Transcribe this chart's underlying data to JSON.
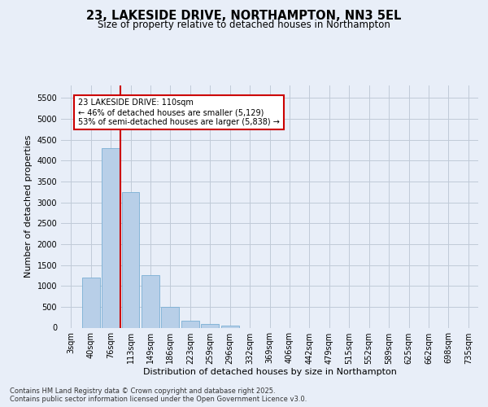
{
  "title_line1": "23, LAKESIDE DRIVE, NORTHAMPTON, NN3 5EL",
  "title_line2": "Size of property relative to detached houses in Northampton",
  "xlabel": "Distribution of detached houses by size in Northampton",
  "ylabel": "Number of detached properties",
  "categories": [
    "3sqm",
    "40sqm",
    "76sqm",
    "113sqm",
    "149sqm",
    "186sqm",
    "223sqm",
    "259sqm",
    "296sqm",
    "332sqm",
    "369sqm",
    "406sqm",
    "442sqm",
    "479sqm",
    "515sqm",
    "552sqm",
    "589sqm",
    "625sqm",
    "662sqm",
    "698sqm",
    "735sqm"
  ],
  "values": [
    0,
    1200,
    4300,
    3250,
    1250,
    500,
    175,
    80,
    50,
    0,
    0,
    0,
    0,
    0,
    0,
    0,
    0,
    0,
    0,
    0,
    0
  ],
  "bar_color": "#b8cfe8",
  "bar_edge_color": "#7aafd4",
  "vline_color": "#cc0000",
  "annotation_text": "23 LAKESIDE DRIVE: 110sqm\n← 46% of detached houses are smaller (5,129)\n53% of semi-detached houses are larger (5,838) →",
  "annotation_box_color": "#ffffff",
  "annotation_box_edge": "#cc0000",
  "ylim": [
    0,
    5800
  ],
  "yticks": [
    0,
    500,
    1000,
    1500,
    2000,
    2500,
    3000,
    3500,
    4000,
    4500,
    5000,
    5500
  ],
  "footer_line1": "Contains HM Land Registry data © Crown copyright and database right 2025.",
  "footer_line2": "Contains public sector information licensed under the Open Government Licence v3.0.",
  "bg_color": "#e8eef8",
  "plot_bg_color": "#e8eef8",
  "grid_color": "#c0cad8",
  "title_fontsize": 10.5,
  "subtitle_fontsize": 8.5,
  "axis_label_fontsize": 8,
  "tick_fontsize": 7,
  "annotation_fontsize": 7,
  "footer_fontsize": 6
}
